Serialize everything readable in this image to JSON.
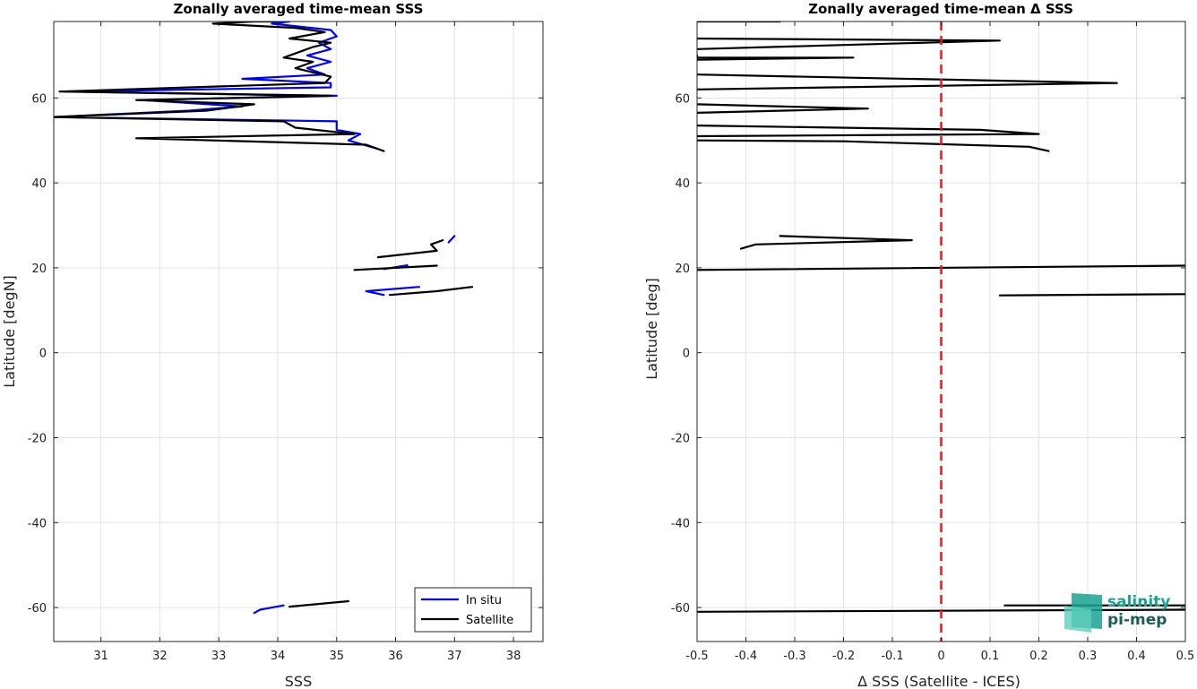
{
  "chart_data": [
    {
      "type": "line",
      "title": "Zonally averaged time-mean SSS",
      "xlabel": "SSS",
      "ylabel": "Latitude [degN]",
      "xlim": [
        30.2,
        38.5
      ],
      "ylim": [
        -68,
        78
      ],
      "xticks": [
        31,
        32,
        33,
        34,
        35,
        36,
        37,
        38
      ],
      "yticks": [
        -60,
        -40,
        -20,
        0,
        20,
        40,
        60
      ],
      "grid": true,
      "legend": {
        "placement": "bottom-right",
        "entries": [
          "In situ",
          "Satellite"
        ]
      },
      "series": [
        {
          "name": "In situ",
          "color": "#0000ff",
          "segments": [
            [
              [
                34.2,
                78
              ],
              [
                33.9,
                77.5
              ],
              [
                34.9,
                76
              ],
              [
                35.0,
                74.5
              ],
              [
                34.7,
                73
              ],
              [
                34.9,
                71.5
              ],
              [
                34.5,
                70
              ],
              [
                34.9,
                68.5
              ],
              [
                34.5,
                67
              ],
              [
                34.8,
                65.5
              ],
              [
                33.4,
                64.5
              ],
              [
                34.9,
                63.5
              ],
              [
                34.9,
                62.5
              ],
              [
                30.4,
                61.5
              ],
              [
                35.0,
                60.5
              ],
              [
                31.7,
                59.5
              ],
              [
                33.4,
                58
              ],
              [
                32.5,
                57
              ],
              [
                30.2,
                55.5
              ],
              [
                35.0,
                54.5
              ],
              [
                35.0,
                52.5
              ],
              [
                35.4,
                51.5
              ],
              [
                35.2,
                50
              ],
              [
                35.7,
                48
              ]
            ],
            [
              [
                37.0,
                27.5
              ],
              [
                36.9,
                26
              ]
            ],
            [
              [
                36.2,
                20.6
              ],
              [
                35.8,
                19.7
              ]
            ],
            [
              [
                36.4,
                15.5
              ],
              [
                35.5,
                14.5
              ],
              [
                35.8,
                13.6
              ]
            ],
            [
              [
                34.1,
                -59.5
              ],
              [
                33.7,
                -60.5
              ],
              [
                33.6,
                -61.3
              ]
            ]
          ]
        },
        {
          "name": "Satellite",
          "color": "#000000",
          "segments": [
            [
              [
                34.0,
                78
              ],
              [
                33.6,
                78
              ],
              [
                32.9,
                77.5
              ],
              [
                34.3,
                76.5
              ],
              [
                34.8,
                75.5
              ],
              [
                34.2,
                74
              ],
              [
                34.9,
                73
              ],
              [
                34.6,
                72
              ],
              [
                34.4,
                71
              ],
              [
                34.1,
                69.5
              ],
              [
                34.6,
                68.5
              ],
              [
                34.3,
                67
              ],
              [
                34.9,
                65
              ],
              [
                34.8,
                63.5
              ],
              [
                30.3,
                61.5
              ],
              [
                34.9,
                60.5
              ],
              [
                31.6,
                59.5
              ],
              [
                33.6,
                58.5
              ],
              [
                32.8,
                57
              ],
              [
                30.2,
                55.5
              ],
              [
                34.1,
                54.5
              ],
              [
                34.3,
                53
              ],
              [
                35.3,
                51.5
              ],
              [
                31.6,
                50.5
              ],
              [
                35.5,
                49
              ],
              [
                35.8,
                47.5
              ]
            ],
            [
              [
                36.8,
                26.5
              ],
              [
                36.6,
                25.5
              ],
              [
                36.7,
                24
              ],
              [
                35.7,
                22.5
              ]
            ],
            [
              [
                35.3,
                19.5
              ],
              [
                36.7,
                20.5
              ]
            ],
            [
              [
                37.3,
                15.5
              ],
              [
                36.7,
                14.5
              ],
              [
                35.9,
                13.6
              ]
            ],
            [
              [
                34.2,
                -59.8
              ],
              [
                35.2,
                -58.5
              ]
            ]
          ]
        }
      ]
    },
    {
      "type": "line",
      "title": "Zonally averaged time-mean Δ SSS",
      "xlabel": "Δ SSS (Satellite - ICES)",
      "ylabel": "Latitude [deg]",
      "xlim": [
        -0.5,
        0.5
      ],
      "ylim": [
        -68,
        78
      ],
      "xticks": [
        -0.5,
        -0.4,
        -0.3,
        -0.2,
        -0.1,
        0,
        0.1,
        0.2,
        0.3,
        0.4,
        0.5
      ],
      "xtick_labels": [
        "-0.5",
        "-0.4",
        "-0.3",
        "-0.2",
        "-0.1",
        "0",
        "0.1",
        "0.2",
        "0.3",
        "0.4",
        "0.5"
      ],
      "yticks": [
        -60,
        -40,
        -20,
        0,
        20,
        40,
        60
      ],
      "grid": true,
      "reference_line": {
        "x": 0,
        "color": "#e8191b",
        "style": "dashed"
      },
      "series": [
        {
          "color": "#000000",
          "segments": [
            [
              [
                -0.5,
                78
              ],
              [
                -0.33,
                78
              ]
            ],
            [
              [
                -0.5,
                74
              ],
              [
                0.12,
                73.5
              ],
              [
                -0.5,
                71.5
              ]
            ],
            [
              [
                -0.5,
                70
              ],
              [
                -0.5,
                69.5
              ],
              [
                -0.18,
                69.5
              ],
              [
                -0.5,
                69
              ]
            ],
            [
              [
                -0.5,
                65.5
              ],
              [
                0.36,
                63.5
              ],
              [
                -0.5,
                62
              ]
            ],
            [
              [
                -0.5,
                58.5
              ],
              [
                -0.15,
                57.5
              ],
              [
                -0.5,
                56.5
              ]
            ],
            [
              [
                -0.5,
                53.5
              ],
              [
                0.08,
                52.5
              ],
              [
                0.2,
                51.5
              ],
              [
                -0.5,
                51
              ]
            ],
            [
              [
                -0.5,
                50
              ],
              [
                -0.2,
                49.8
              ],
              [
                0.18,
                48.5
              ],
              [
                0.22,
                47.5
              ]
            ],
            [
              [
                -0.33,
                27.5
              ],
              [
                -0.06,
                26.5
              ],
              [
                -0.38,
                25.5
              ],
              [
                -0.41,
                24.5
              ]
            ],
            [
              [
                -0.5,
                19.5
              ],
              [
                0.5,
                20.5
              ]
            ],
            [
              [
                0.12,
                13.5
              ],
              [
                0.5,
                13.8
              ]
            ],
            [
              [
                -0.5,
                -61
              ],
              [
                0.5,
                -60.5
              ]
            ],
            [
              [
                0.13,
                -59.5
              ],
              [
                0.5,
                -59.5
              ]
            ]
          ]
        }
      ]
    }
  ],
  "logo": {
    "line1": "salinity",
    "line2": "pi-mep",
    "color": "#1aa390"
  }
}
